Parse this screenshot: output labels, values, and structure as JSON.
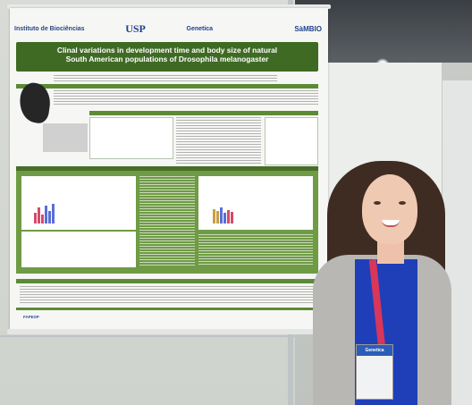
{
  "poster": {
    "logos": [
      "Instituto de Biociências",
      "USP",
      "Genetica",
      "SàMBIO"
    ],
    "title_line1": "Clinal variations in development time and body size of natural",
    "title_line2": "South American populations of Drosophila melanogaster",
    "footer_logo": "FAPESP"
  },
  "badge": {
    "event": "Genetica"
  }
}
